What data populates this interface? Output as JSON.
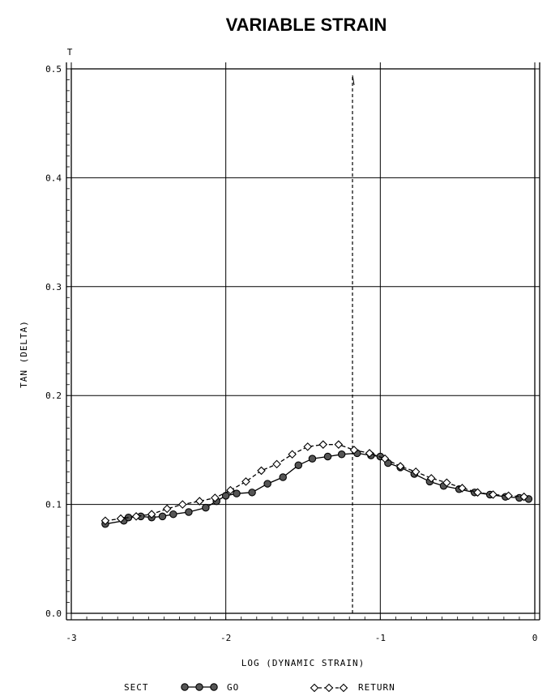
{
  "chart_data": {
    "type": "line",
    "title": "VARIABLE STRAIN",
    "xlabel": "LOG (DYNAMIC STRAIN)",
    "ylabel": "TAN (DELTA)",
    "corner_label": "T",
    "xlim": [
      -3,
      0
    ],
    "ylim": [
      0.0,
      0.5
    ],
    "x_ticks": [
      "-3",
      "-2",
      "-1",
      "0"
    ],
    "y_ticks": [
      "0.0",
      "0.1",
      "0.2",
      "0.3",
      "0.4",
      "0.5"
    ],
    "grid": true,
    "vertical_marker_x": -1.18,
    "legend_prefix": "SECT",
    "legend_position": "bottom",
    "series": [
      {
        "name": "GO",
        "marker": "filled-circle",
        "linestyle": "solid",
        "color": "#000000",
        "x": [
          -2.78,
          -2.66,
          -2.63,
          -2.55,
          -2.48,
          -2.41,
          -2.34,
          -2.24,
          -2.13,
          -2.06,
          -2.0,
          -1.93,
          -1.83,
          -1.73,
          -1.63,
          -1.53,
          -1.44,
          -1.34,
          -1.25,
          -1.15,
          -1.06,
          -1.0,
          -0.95,
          -0.87,
          -0.78,
          -0.68,
          -0.59,
          -0.49,
          -0.39,
          -0.29,
          -0.19,
          -0.1,
          -0.04
        ],
        "y": [
          0.082,
          0.085,
          0.088,
          0.089,
          0.088,
          0.089,
          0.091,
          0.093,
          0.097,
          0.103,
          0.108,
          0.11,
          0.111,
          0.119,
          0.125,
          0.136,
          0.142,
          0.144,
          0.146,
          0.147,
          0.145,
          0.144,
          0.138,
          0.134,
          0.128,
          0.121,
          0.117,
          0.114,
          0.111,
          0.109,
          0.107,
          0.106,
          0.105
        ]
      },
      {
        "name": "RETURN",
        "marker": "open-diamond",
        "linestyle": "dashed",
        "color": "#000000",
        "x": [
          -2.78,
          -2.68,
          -2.58,
          -2.48,
          -2.38,
          -2.28,
          -2.17,
          -2.07,
          -1.97,
          -1.87,
          -1.77,
          -1.67,
          -1.57,
          -1.47,
          -1.37,
          -1.27,
          -1.17,
          -1.07,
          -0.97,
          -0.87,
          -0.77,
          -0.67,
          -0.57,
          -0.47,
          -0.37,
          -0.27,
          -0.17,
          -0.07
        ],
        "y": [
          0.085,
          0.087,
          0.089,
          0.091,
          0.096,
          0.1,
          0.103,
          0.106,
          0.113,
          0.121,
          0.131,
          0.137,
          0.146,
          0.153,
          0.155,
          0.155,
          0.15,
          0.147,
          0.142,
          0.135,
          0.13,
          0.124,
          0.12,
          0.115,
          0.111,
          0.109,
          0.108,
          0.107
        ]
      }
    ]
  }
}
